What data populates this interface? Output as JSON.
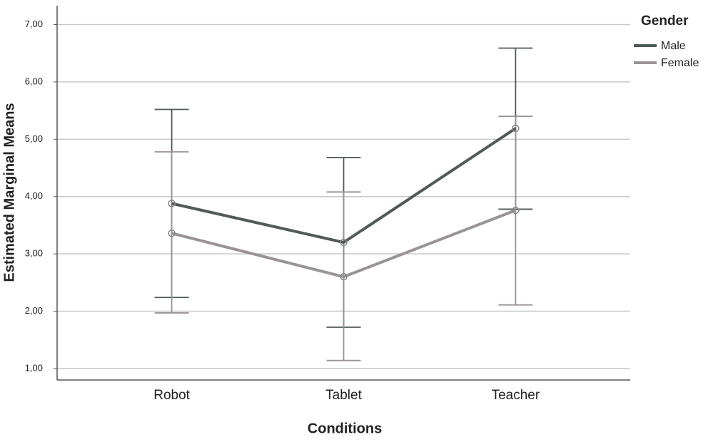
{
  "chart_data": {
    "type": "line",
    "x_label": "Conditions",
    "y_label": "Estimated Marginal Means",
    "legend_title": "Gender",
    "legend": "top-right",
    "categories": [
      "Robot",
      "Tablet",
      "Teacher"
    ],
    "series": [
      {
        "name": "Male",
        "color": "#505a57",
        "values": [
          3.88,
          3.2,
          5.19
        ],
        "lower": [
          2.24,
          1.72,
          3.78
        ],
        "upper": [
          5.52,
          4.68,
          6.59
        ]
      },
      {
        "name": "Female",
        "color": "#9a9396",
        "values": [
          3.36,
          2.6,
          3.76
        ],
        "lower": [
          1.97,
          1.14,
          2.11
        ],
        "upper": [
          4.78,
          4.08,
          5.4
        ]
      }
    ],
    "ylim": [
      0.8,
      7.33
    ],
    "yticks": [
      {
        "value": 1,
        "label": "1,00"
      },
      {
        "value": 2,
        "label": "2,00"
      },
      {
        "value": 3,
        "label": "3,00"
      },
      {
        "value": 4,
        "label": "4,00"
      },
      {
        "value": 5,
        "label": "5,00"
      },
      {
        "value": 6,
        "label": "6,00"
      },
      {
        "value": 7,
        "label": "7,00"
      }
    ],
    "grid": true
  }
}
